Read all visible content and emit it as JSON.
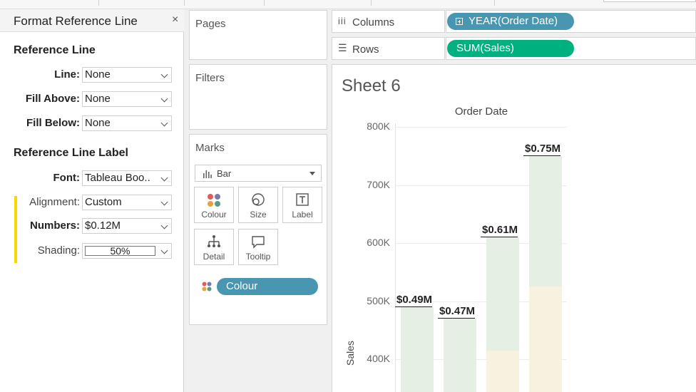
{
  "format_panel": {
    "title": "Format Reference Line",
    "close": "×",
    "reference_line": {
      "title": "Reference Line",
      "line": {
        "label": "Line:",
        "value": "None"
      },
      "fill_above": {
        "label": "Fill Above:",
        "value": "None"
      },
      "fill_below": {
        "label": "Fill Below:",
        "value": "None"
      }
    },
    "reference_line_label": {
      "title": "Reference Line Label",
      "font": {
        "label": "Font:",
        "value": "Tableau Boo.."
      },
      "alignment": {
        "label": "Alignment:",
        "value": "Custom"
      },
      "numbers": {
        "label": "Numbers:",
        "value": "$0.12M"
      },
      "shading": {
        "label": "Shading:",
        "value": "50%"
      }
    }
  },
  "cards": {
    "pages": "Pages",
    "filters": "Filters",
    "marks": {
      "title": "Marks",
      "type": "Bar",
      "buttons": {
        "colour": "Colour",
        "size": "Size",
        "label": "Label",
        "detail": "Detail",
        "tooltip": "Tooltip"
      },
      "colour_pill": "Colour"
    }
  },
  "shelves": {
    "columns": {
      "label": "Columns",
      "pill": "YEAR(Order Date)",
      "pill_color": "#4996b2"
    },
    "rows": {
      "label": "Rows",
      "pill": "SUM(Sales)",
      "pill_color": "#00b180"
    }
  },
  "sheet": {
    "title": "Sheet 6"
  },
  "chart_data": {
    "type": "bar",
    "xlabel": "Order Date",
    "ylabel": "Sales",
    "y_ticks": [
      "800K",
      "700K",
      "600K",
      "500K",
      "400K"
    ],
    "ylim_visible": [
      360000,
      800000
    ],
    "bar_labels": [
      "$0.49M",
      "$0.47M",
      "$0.61M",
      "$0.75M"
    ],
    "values": [
      490000,
      470000,
      610000,
      750000
    ],
    "band_upper_color": "#e6efe3",
    "band_lower_color": "#f7f2df",
    "band_boundary_visible": [
      null,
      null,
      415000,
      525000
    ]
  }
}
